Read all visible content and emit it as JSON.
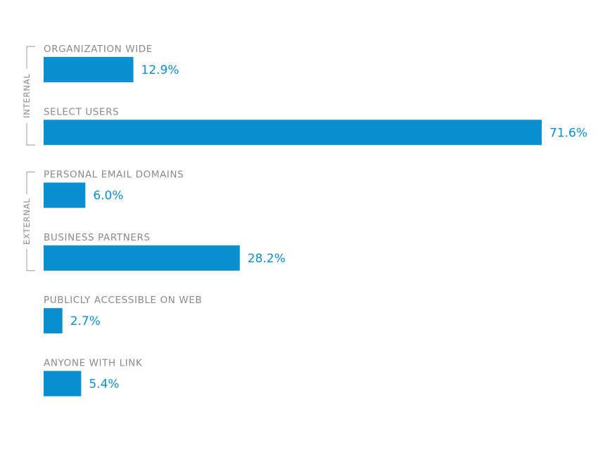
{
  "chart_data": {
    "type": "bar",
    "orientation": "horizontal",
    "categories": [
      "ORGANIZATION WIDE",
      "SELECT USERS",
      "PERSONAL EMAIL DOMAINS",
      "BUSINESS PARTNERS",
      "PUBLICLY ACCESSIBLE ON WEB",
      "ANYONE WITH LINK"
    ],
    "values": [
      12.9,
      71.6,
      6.0,
      28.2,
      2.7,
      5.4
    ],
    "value_labels": [
      "12.9%",
      "71.6%",
      "6.0%",
      "28.2%",
      "2.7%",
      "5.4%"
    ],
    "groups": [
      {
        "label": "INTERNAL",
        "categories": [
          "ORGANIZATION WIDE",
          "SELECT USERS"
        ]
      },
      {
        "label": "EXTERNAL",
        "categories": [
          "PERSONAL EMAIL DOMAINS",
          "BUSINESS PARTNERS"
        ]
      }
    ],
    "title": "",
    "xlabel": "",
    "ylabel": "",
    "xlim": [
      0,
      71.6
    ],
    "grid": false,
    "bar_color": "#0a8fd1",
    "label_color": "#8a8a8a",
    "value_color": "#0a8fd1"
  }
}
